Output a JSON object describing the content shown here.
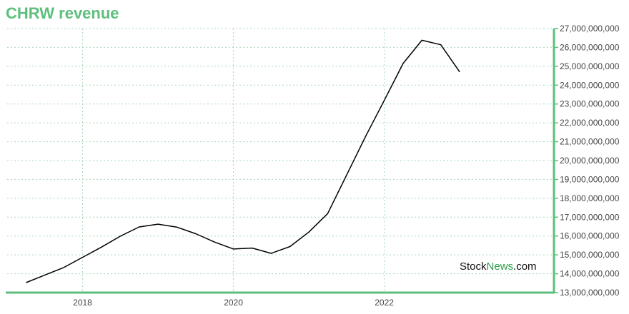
{
  "title": "CHRW revenue",
  "watermark": {
    "part1": "Stock",
    "part2": "News",
    "part3": ".com"
  },
  "colors": {
    "accent": "#5dbf7c",
    "line": "#000000",
    "grid": "#a8d8b8",
    "watermark_green": "#2e9a4c"
  },
  "chart_data": {
    "type": "line",
    "title": "CHRW revenue",
    "xlabel": "",
    "ylabel": "",
    "grid": true,
    "y_axis_position": "right",
    "xlim": [
      2017.0,
      2024.25
    ],
    "ylim": [
      13000000000,
      27000000000
    ],
    "x_ticks": [
      2018,
      2020,
      2022
    ],
    "x_tick_labels": [
      "2018",
      "2020",
      "2022"
    ],
    "y_ticks": [
      13000000000,
      14000000000,
      15000000000,
      16000000000,
      17000000000,
      18000000000,
      19000000000,
      20000000000,
      21000000000,
      22000000000,
      23000000000,
      24000000000,
      25000000000,
      26000000000,
      27000000000
    ],
    "y_tick_labels": [
      "13,000,000,000",
      "14,000,000,000",
      "15,000,000,000",
      "16,000,000,000",
      "17,000,000,000",
      "18,000,000,000",
      "19,000,000,000",
      "20,000,000,000",
      "21,000,000,000",
      "22,000,000,000",
      "23,000,000,000",
      "24,000,000,000",
      "25,000,000,000",
      "26,000,000,000",
      "27,000,000,000"
    ],
    "series": [
      {
        "x": [
          2017.25,
          2017.5,
          2017.75,
          2018.0,
          2018.25,
          2018.5,
          2018.75,
          2019.0,
          2019.25,
          2019.5,
          2019.75,
          2020.0,
          2020.25,
          2020.5,
          2020.75,
          2021.0,
          2021.25,
          2021.5,
          2021.75,
          2022.0,
          2022.25,
          2022.5,
          2022.75,
          2023.0
        ],
        "values": [
          13530000000,
          13930000000,
          14330000000,
          14870000000,
          15410000000,
          15990000000,
          16480000000,
          16630000000,
          16470000000,
          16120000000,
          15680000000,
          15310000000,
          15360000000,
          15080000000,
          15440000000,
          16210000000,
          17190000000,
          19220000000,
          21260000000,
          23190000000,
          25150000000,
          26380000000,
          26140000000,
          24700000000
        ]
      }
    ]
  }
}
